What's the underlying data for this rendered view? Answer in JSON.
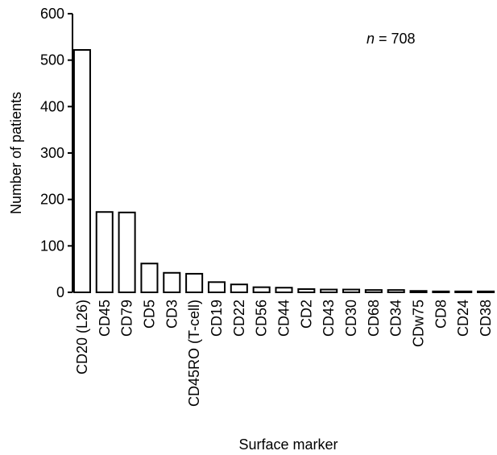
{
  "chart_data": {
    "type": "bar",
    "x_label": "Surface marker",
    "y_label": "Number of patients",
    "annotation_variable": "n",
    "annotation_value": "= 708",
    "categories": [
      "CD20 (L26)",
      "CD45",
      "CD79",
      "CD5",
      "CD3",
      "CD45RO (T-cell)",
      "CD19",
      "CD22",
      "CD56",
      "CD44",
      "CD2",
      "CD43",
      "CD30",
      "CD68",
      "CD34",
      "CDw75",
      "CD8",
      "CD24",
      "CD38"
    ],
    "values": [
      522,
      173,
      172,
      62,
      42,
      40,
      22,
      17,
      11,
      10,
      7,
      6,
      6,
      5,
      5,
      3,
      2,
      2,
      2
    ],
    "color": "#ffffff",
    "ylim": [
      0,
      600
    ],
    "yticks": [
      0,
      100,
      200,
      300,
      400,
      500,
      600
    ],
    "grid": false
  }
}
